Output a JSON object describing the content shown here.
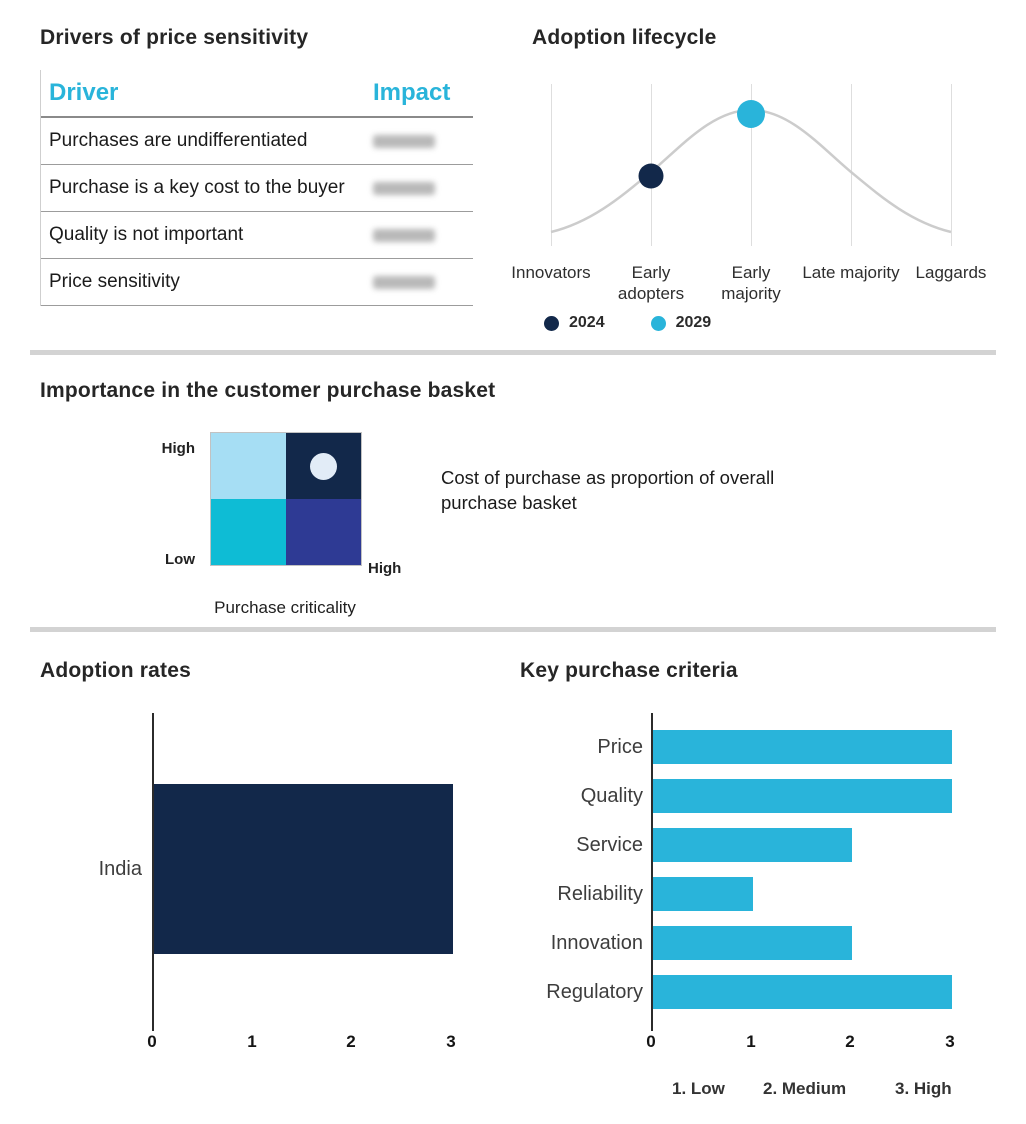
{
  "accent": "#29b4da",
  "navy": "#12284a",
  "chart_data": [
    {
      "type": "table",
      "title": "Drivers of price sensitivity",
      "columns": [
        "Driver",
        "Impact"
      ],
      "rows": [
        "Purchases are undifferentiated",
        "Purchase is a key cost to the buyer",
        "Quality is not important",
        "Price sensitivity"
      ],
      "impact_values_blurred": true
    },
    {
      "type": "line",
      "title": "Adoption lifecycle",
      "categories": [
        "Innovators",
        "Early adopters",
        "Early majority",
        "Late majority",
        "Laggards"
      ],
      "curve": {
        "name": "bell-curve",
        "color": "#cccccc",
        "values": [
          0.05,
          0.55,
          1.0,
          0.55,
          0.05
        ]
      },
      "points": [
        {
          "series": "2024",
          "category": "Early adopters",
          "value": 0.55,
          "color": "#12284a"
        },
        {
          "series": "2029",
          "category": "Early majority",
          "value": 0.97,
          "color": "#29b4da"
        }
      ],
      "legend": [
        "2024",
        "2029"
      ],
      "legend_position": "bottom",
      "grid": "vertical"
    },
    {
      "type": "heatmap",
      "title": "Importance in the customer purchase basket",
      "xlabel": "Purchase criticality",
      "x_axis_ends": [
        "",
        "High"
      ],
      "y_axis_ends": [
        "Low",
        "High"
      ],
      "quadrants": [
        {
          "pos": "top-left",
          "color": "#a6def4"
        },
        {
          "pos": "top-right",
          "color": "#12284a",
          "marker": true
        },
        {
          "pos": "bottom-left",
          "color": "#0ebcd5"
        },
        {
          "pos": "bottom-right",
          "color": "#2e3a94"
        }
      ],
      "marker_color": "#e2ecf7",
      "annotation": "Cost of purchase as proportion of overall purchase basket"
    },
    {
      "type": "bar",
      "title": "Adoption rates",
      "orientation": "horizontal",
      "categories": [
        "India"
      ],
      "values": [
        3
      ],
      "bar_color": "#12284a",
      "xlim": [
        0,
        3
      ],
      "xticks": [
        0,
        1,
        2,
        3
      ]
    },
    {
      "type": "bar",
      "title": "Key purchase criteria",
      "orientation": "horizontal",
      "categories": [
        "Price",
        "Quality",
        "Service",
        "Reliability",
        "Innovation",
        "Regulatory"
      ],
      "values": [
        3,
        3,
        2,
        1,
        2,
        3
      ],
      "bar_color": "#29b4da",
      "xlim": [
        0,
        3
      ],
      "xticks": [
        0,
        1,
        2,
        3
      ],
      "scale_note": [
        "1. Low",
        "2. Medium",
        "3. High"
      ]
    }
  ]
}
